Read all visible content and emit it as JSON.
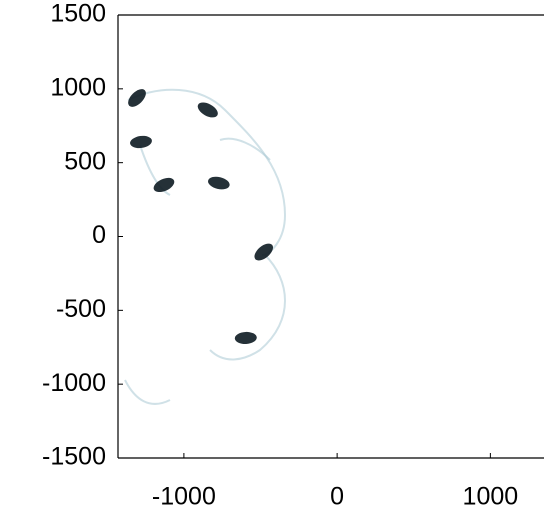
{
  "chart_data": {
    "type": "scatter",
    "x": [
      -1306,
      -1280,
      -844,
      -1130,
      -772,
      -479,
      -596
    ],
    "y": [
      938,
      640,
      857,
      349,
      362,
      -105,
      -687
    ],
    "color": "#0d1b22",
    "xlim": [
      -1430,
      1350
    ],
    "ylim": [
      -1500,
      1500
    ],
    "xticks": [
      -1000,
      0,
      1000
    ],
    "yticks": [
      -1500,
      -1000,
      -500,
      0,
      500,
      1000,
      1500
    ]
  }
}
